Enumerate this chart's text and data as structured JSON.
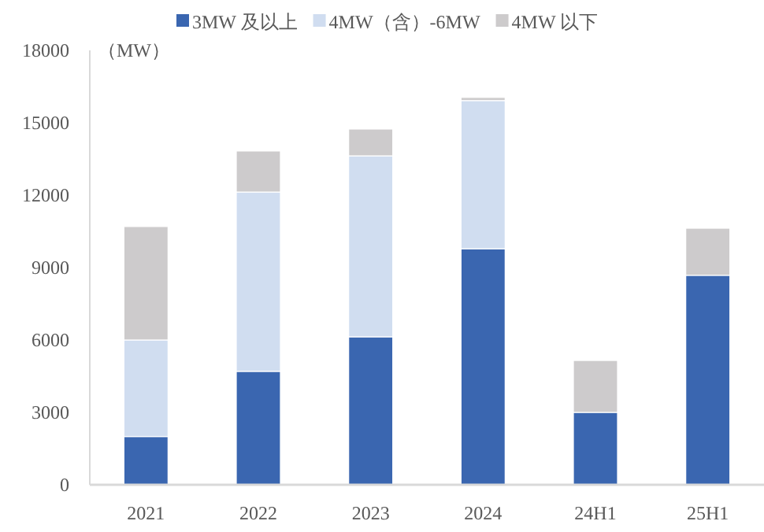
{
  "chart_data": {
    "type": "bar",
    "stacked": true,
    "ylabel": "（MW）",
    "categories": [
      "2021",
      "2022",
      "2023",
      "2024",
      "24H1",
      "25H1"
    ],
    "series": [
      {
        "name": "3MW 及以上",
        "color": "#3a66b0",
        "values": [
          2000,
          4700,
          6130,
          9780,
          3000,
          8680
        ]
      },
      {
        "name": "4MW（含）-6MW",
        "color": "#d0ddf0",
        "values": [
          4000,
          7430,
          7500,
          6140,
          0,
          0
        ]
      },
      {
        "name": "4MW 以下",
        "color": "#cdcbcc",
        "values": [
          4700,
          1700,
          1110,
          130,
          2150,
          1950
        ]
      }
    ],
    "ylim": [
      0,
      18000
    ],
    "yticks": [
      0,
      3000,
      6000,
      9000,
      12000,
      15000,
      18000
    ],
    "grid": false,
    "legend": "top"
  }
}
